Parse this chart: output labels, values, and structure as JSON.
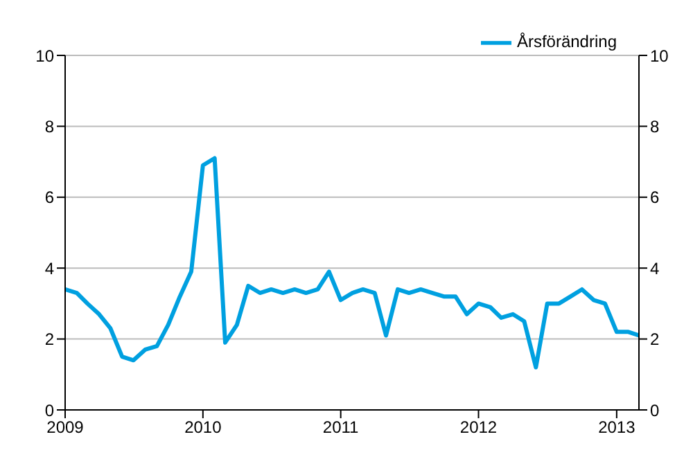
{
  "chart_data": {
    "type": "line",
    "x": [
      "2009-01",
      "2009-02",
      "2009-03",
      "2009-04",
      "2009-05",
      "2009-06",
      "2009-07",
      "2009-08",
      "2009-09",
      "2009-10",
      "2009-11",
      "2009-12",
      "2010-01",
      "2010-02",
      "2010-03",
      "2010-04",
      "2010-05",
      "2010-06",
      "2010-07",
      "2010-08",
      "2010-09",
      "2010-10",
      "2010-11",
      "2010-12",
      "2011-01",
      "2011-02",
      "2011-03",
      "2011-04",
      "2011-05",
      "2011-06",
      "2011-07",
      "2011-08",
      "2011-09",
      "2011-10",
      "2011-11",
      "2011-12",
      "2012-01",
      "2012-02",
      "2012-03",
      "2012-04",
      "2012-05",
      "2012-06",
      "2012-07",
      "2012-08",
      "2012-09",
      "2012-10",
      "2012-11",
      "2012-12",
      "2013-01",
      "2013-02",
      "2013-03"
    ],
    "series": [
      {
        "name": "Årsförändring",
        "color": "#00a0e0",
        "values": [
          3.4,
          3.3,
          3.0,
          2.7,
          2.3,
          1.5,
          1.4,
          1.7,
          1.8,
          2.4,
          3.2,
          3.9,
          6.9,
          7.1,
          1.9,
          2.4,
          3.5,
          3.3,
          3.4,
          3.3,
          3.4,
          3.3,
          3.4,
          3.9,
          3.1,
          3.3,
          3.4,
          3.3,
          2.1,
          3.4,
          3.3,
          3.4,
          3.3,
          3.2,
          3.2,
          2.7,
          3.0,
          2.9,
          2.6,
          2.7,
          2.5,
          1.2,
          3.0,
          3.0,
          3.2,
          3.4,
          3.1,
          3.0,
          2.2,
          2.2,
          2.1
        ]
      }
    ],
    "xlim": [
      "2009-01",
      "2013-03"
    ],
    "xticks": [
      "2009",
      "2010",
      "2011",
      "2012",
      "2013"
    ],
    "ylim": [
      0,
      10
    ],
    "yticks": [
      0,
      2,
      4,
      6,
      8,
      10
    ],
    "y2lim": [
      0,
      10
    ],
    "y2ticks": [
      0,
      2,
      4,
      6,
      8,
      10
    ],
    "grid": "y",
    "legend": "top right",
    "marker": "none",
    "line_style": "solid"
  }
}
